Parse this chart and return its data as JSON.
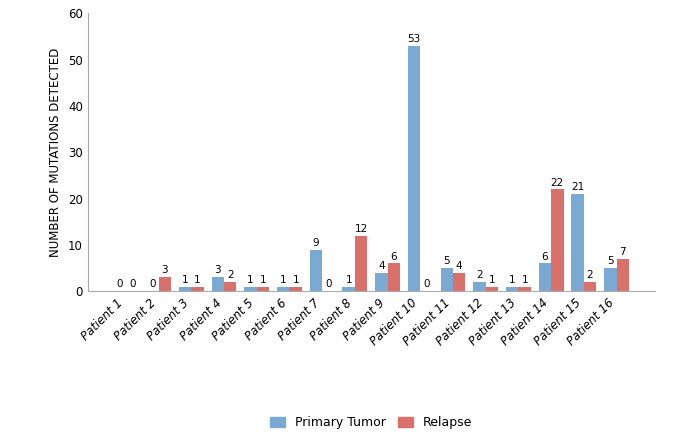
{
  "patients": [
    "Patient 1",
    "Patient 2",
    "Patient 3",
    "Patient 4",
    "Patient 5",
    "Patient 6",
    "Patient 7",
    "Patient 8",
    "Patient 9",
    "Patient 10",
    "Patient 11",
    "Patient 12",
    "Patient 13",
    "Patient 14",
    "Patient 15",
    "Patient 16"
  ],
  "primary_tumor": [
    0,
    0,
    1,
    3,
    1,
    1,
    9,
    1,
    4,
    53,
    5,
    2,
    1,
    6,
    21,
    5
  ],
  "relapse": [
    0,
    3,
    1,
    2,
    1,
    1,
    0,
    12,
    6,
    0,
    4,
    1,
    1,
    22,
    2,
    7
  ],
  "primary_color": "#7aaad4",
  "relapse_color": "#d9706a",
  "ylabel": "NUMBER OF MUTATIONS DETECTED",
  "ylim": [
    0,
    60
  ],
  "yticks": [
    0,
    10,
    20,
    30,
    40,
    50,
    60
  ],
  "legend_primary": "Primary Tumor",
  "legend_relapse": "Relapse",
  "bar_width": 0.38,
  "label_fontsize": 7.5,
  "axis_label_fontsize": 8.5,
  "tick_label_fontsize": 8.5,
  "ylabel_fontsize": 8.5
}
